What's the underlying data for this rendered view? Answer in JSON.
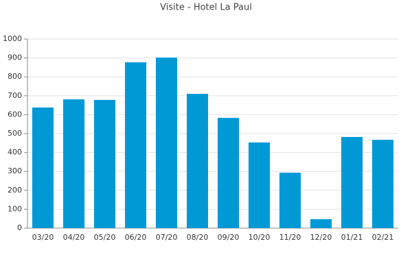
{
  "chart_data": {
    "type": "bar",
    "title": "Visite - Hotel La Paul",
    "categories": [
      "03/20",
      "04/20",
      "05/20",
      "06/20",
      "07/20",
      "08/20",
      "09/20",
      "10/20",
      "11/20",
      "12/20",
      "01/21",
      "02/21"
    ],
    "values": [
      638,
      681,
      678,
      877,
      902,
      710,
      583,
      453,
      293,
      47,
      482,
      467
    ],
    "color": "#0099d6",
    "ylim": [
      0,
      1000
    ],
    "yticks": [
      0,
      100,
      200,
      300,
      400,
      500,
      600,
      700,
      800,
      900,
      1000
    ],
    "grid": true
  }
}
